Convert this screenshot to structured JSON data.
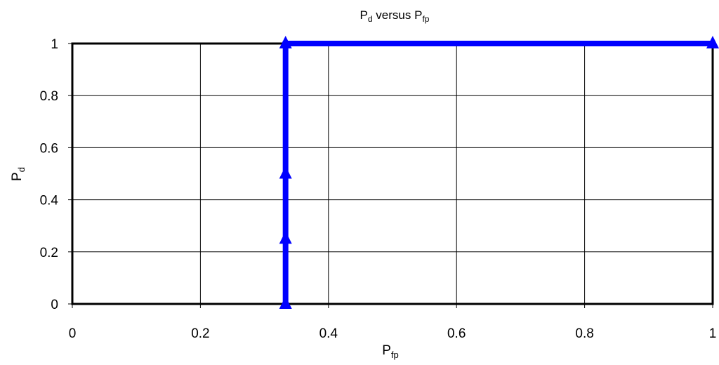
{
  "chart_data": {
    "type": "line",
    "title": {
      "main": "P",
      "main_sub": "d",
      "mid": " versus P",
      "end_sub": "fp"
    },
    "xlabel": {
      "main": "P",
      "sub": "fp"
    },
    "ylabel": {
      "main": "P",
      "sub": "d"
    },
    "xlim": [
      0,
      1
    ],
    "ylim": [
      0,
      1
    ],
    "x_ticks": [
      0,
      0.2,
      0.4,
      0.6,
      0.8,
      1
    ],
    "x_tick_labels": [
      "0",
      "0.2",
      "0.4",
      "0.6",
      "0.8",
      "1"
    ],
    "y_ticks": [
      0,
      0.2,
      0.4,
      0.6,
      0.8,
      1
    ],
    "y_tick_labels": [
      "0",
      "0.2",
      "0.4",
      "0.6",
      "0.8",
      "1"
    ],
    "grid": true,
    "series": [
      {
        "color": "#0000ff",
        "marker": "triangle",
        "points": [
          {
            "x": 0.333,
            "y": 0
          },
          {
            "x": 0.333,
            "y": 0.25
          },
          {
            "x": 0.333,
            "y": 0.5
          },
          {
            "x": 0.333,
            "y": 1
          },
          {
            "x": 1,
            "y": 1
          }
        ]
      }
    ]
  }
}
